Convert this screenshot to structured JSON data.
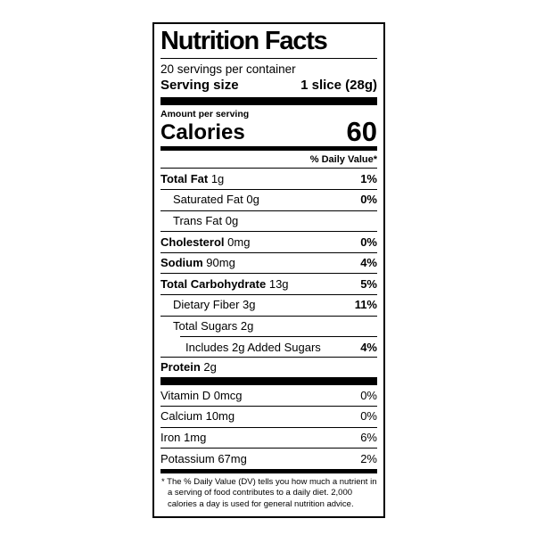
{
  "label": {
    "title": "Nutrition Facts",
    "servings_per_container": "20 servings per container",
    "serving_size": {
      "label": "Serving size",
      "value": "1 slice (28g)"
    },
    "amount_per_serving": "Amount per serving",
    "calories": {
      "label": "Calories",
      "value": "60"
    },
    "daily_value_header": "% Daily Value*",
    "nutrients": [
      {
        "name": "Total Fat",
        "amount": "1g",
        "dv": "1%"
      },
      {
        "name": "Saturated Fat",
        "amount": "0g",
        "dv": "0%"
      },
      {
        "name": "Trans Fat",
        "amount": "0g",
        "dv": ""
      },
      {
        "name": "Cholesterol",
        "amount": "0mg",
        "dv": "0%"
      },
      {
        "name": "Sodium",
        "amount": "90mg",
        "dv": "4%"
      },
      {
        "name": "Total Carbohydrate",
        "amount": "13g",
        "dv": "5%"
      },
      {
        "name": "Dietary Fiber",
        "amount": "3g",
        "dv": "11%"
      },
      {
        "name": "Total Sugars",
        "amount": "2g",
        "dv": ""
      },
      {
        "name": "Includes 2g Added Sugars",
        "amount": "",
        "dv": "4%"
      },
      {
        "name": "Protein",
        "amount": "2g",
        "dv": ""
      }
    ],
    "vitamins": [
      {
        "name": "Vitamin D",
        "amount": "0mcg",
        "dv": "0%"
      },
      {
        "name": "Calcium",
        "amount": "10mg",
        "dv": "0%"
      },
      {
        "name": "Iron",
        "amount": "1mg",
        "dv": "6%"
      },
      {
        "name": "Potassium",
        "amount": "67mg",
        "dv": "2%"
      }
    ],
    "footnote": "* The % Daily Value (DV) tells you how much a nutrient in a serving of food contributes to a daily diet. 2,000 calories a day is used for general nutrition advice."
  },
  "colors": {
    "text": "#000000",
    "background": "#ffffff",
    "border": "#000000"
  }
}
